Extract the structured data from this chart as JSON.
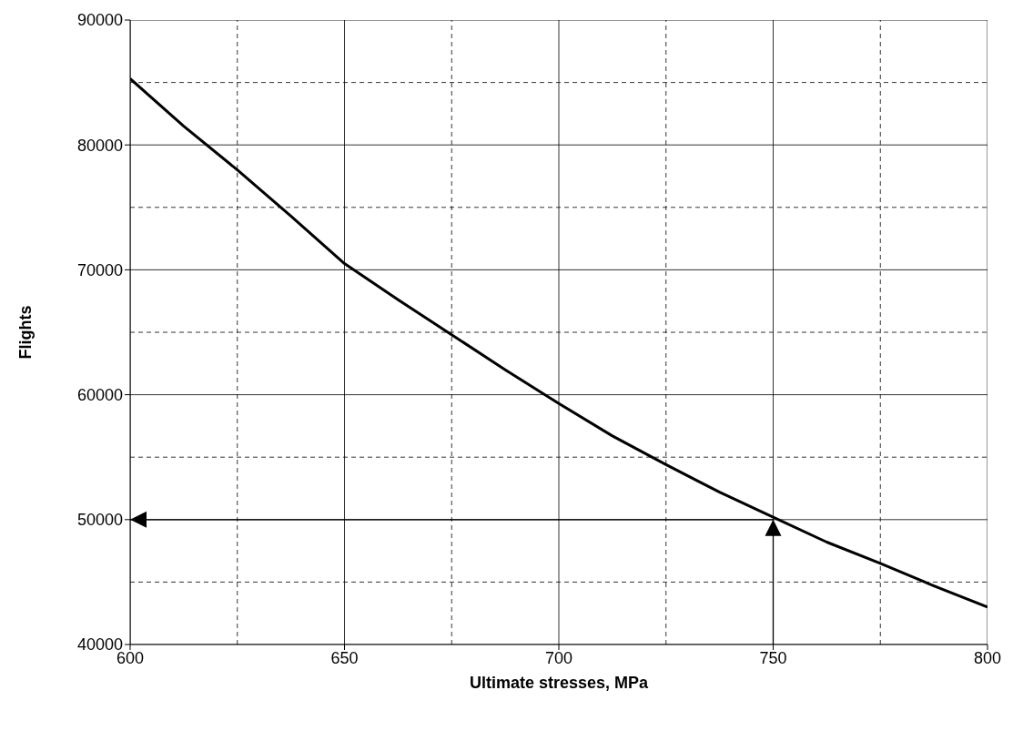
{
  "chart_data": {
    "type": "line",
    "xlabel": "Ultimate stresses, MPa",
    "ylabel": "Flights",
    "x": [
      600,
      612.5,
      625,
      637.5,
      650,
      662.5,
      675,
      687.5,
      700,
      712.5,
      725,
      737.5,
      750,
      762.5,
      775,
      787.5,
      800
    ],
    "series": [
      {
        "color": "#000000",
        "values": [
          85300,
          81500,
          78000,
          74300,
          70500,
          67600,
          64800,
          62000,
          59300,
          56700,
          54400,
          52200,
          50200,
          48200,
          46500,
          44700,
          43000
        ]
      }
    ],
    "xlim": [
      600,
      800
    ],
    "xticks": [
      600,
      {
        "value": 625,
        "label": null
      },
      650,
      {
        "value": 675,
        "label": null
      },
      700,
      {
        "value": 725,
        "label": null
      },
      750,
      {
        "value": 775,
        "label": null
      },
      800
    ],
    "ylim": [
      40000,
      90000
    ],
    "yticks": [
      40000,
      {
        "value": 45000,
        "label": null
      },
      50000,
      {
        "value": 55000,
        "label": null
      },
      60000,
      {
        "value": 65000,
        "label": null
      },
      70000,
      {
        "value": 75000,
        "label": null
      },
      80000,
      {
        "value": 85000,
        "label": null
      },
      90000
    ],
    "ref_lines": [
      {
        "axis": "x",
        "value": 750
      },
      {
        "axis": "y",
        "value": 50000
      }
    ],
    "grid": true,
    "marker": "none",
    "line_style": "solid"
  }
}
